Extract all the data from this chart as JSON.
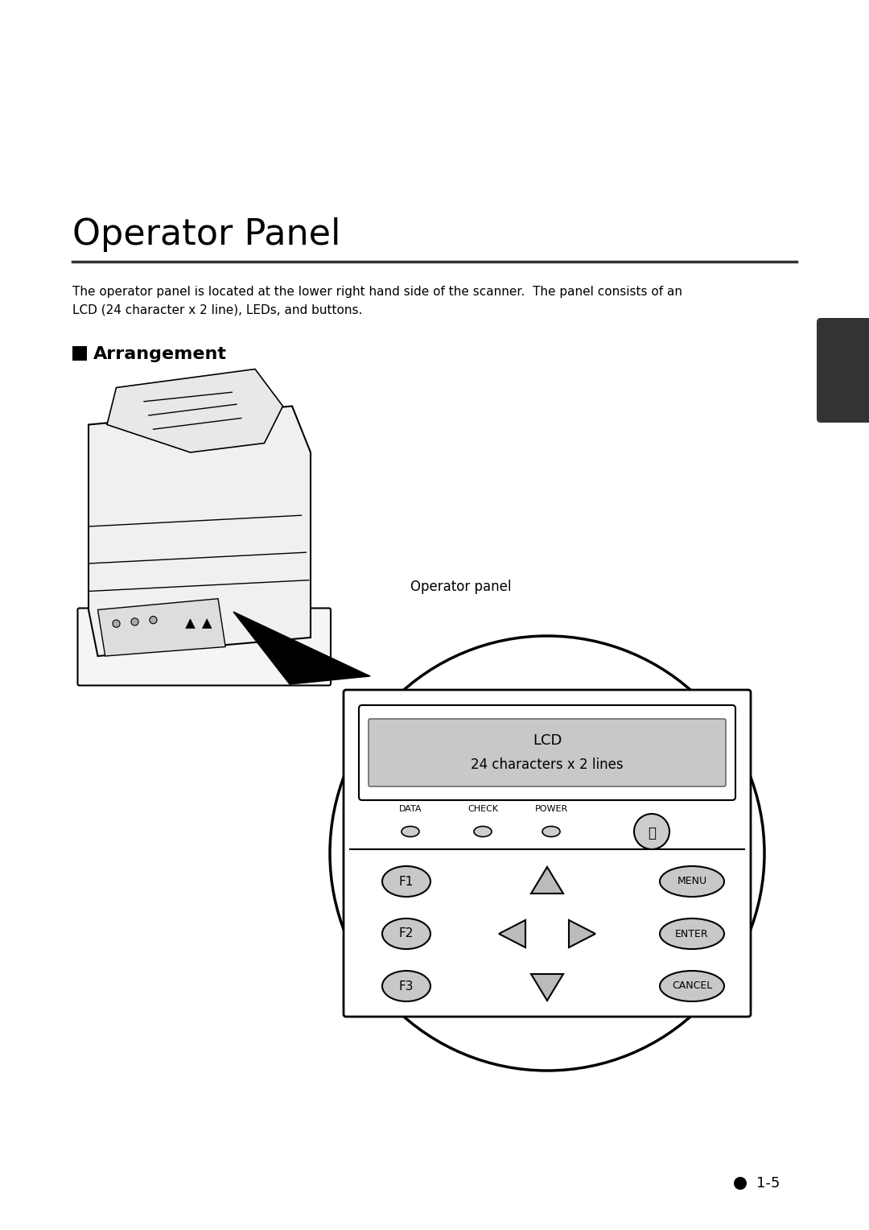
{
  "title": "Operator Panel",
  "body_text": "The operator panel is located at the lower right hand side of the scanner.  The panel consists of an\nLCD (24 character x 2 line), LEDs, and buttons.",
  "section_title": "Arrangement",
  "operator_panel_label": "Operator panel",
  "lcd_line1": "LCD",
  "lcd_line2": "24 characters x 2 lines",
  "led_labels": [
    "DATA",
    "CHECK",
    "POWER"
  ],
  "func_buttons": [
    "F1",
    "F2",
    "F3"
  ],
  "right_buttons": [
    "MENU",
    "ENTER",
    "CANCEL"
  ],
  "page_number": "1-5",
  "bg_color": "#ffffff",
  "text_color": "#000000",
  "panel_bg": "#d8d8d8",
  "lcd_bg": "#c8c8c8",
  "circle_color": "#e8e8e8",
  "tab_color": "#333333"
}
